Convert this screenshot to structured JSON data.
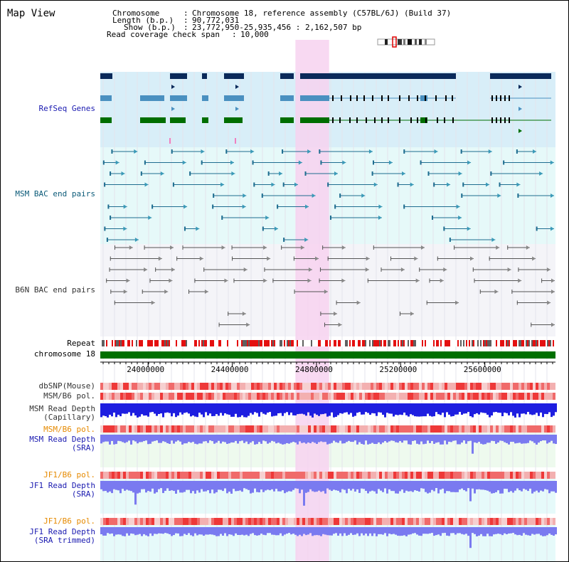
{
  "page": {
    "title": "Map View"
  },
  "header": {
    "chromosome_key": "Chromosome",
    "chromosome_value": "Chromosome 18, reference assembly (C57BL/6J) (Build 37)",
    "length_key": "Length (b.p.)",
    "length_value": "90,772,031",
    "show_key": "Show (b.p.)",
    "show_value": "23,772,950-25,935,456 : 2,162,507 bp",
    "coverage_key": "Read coverage check span",
    "coverage_value": "10,000",
    "sep": ":"
  },
  "tracks": {
    "refseq": "RefSeq Genes",
    "msm_bac": "MSM BAC end pairs",
    "b6n_bac": "B6N BAC end pairs",
    "repeat": "Repeat",
    "chromosome": "chromosome 18",
    "dbsnp": "dbSNP(Mouse)",
    "msm_b6_pol_1": "MSM/B6 pol.",
    "msm_read_depth_cap_1": "MSM Read Depth",
    "msm_read_depth_cap_2": "(Capillary)",
    "msm_b6_pol_2": "MSM/B6 pol.",
    "msm_read_depth_sra_1": "MSM Read Depth",
    "msm_read_depth_sra_2": "(SRA)",
    "jf1_b6_pol_1": "JF1/B6 pol.",
    "jf1_read_depth_sra_1": "JF1 Read Depth",
    "jf1_read_depth_sra_2": "(SRA)",
    "jf1_b6_pol_2": "JF1/B6 pol.",
    "jf1_read_depth_trim_1": "JF1 Read Depth",
    "jf1_read_depth_trim_2": "(SRA trimmed)"
  },
  "axis": {
    "tick_labels": [
      "24000000",
      "24400000",
      "24800000",
      "25200000",
      "25600000"
    ],
    "tick_values": [
      24000000,
      24400000,
      24800000,
      25200000,
      25600000
    ],
    "range_start": 23772950,
    "range_end": 25935456
  },
  "highlight": {
    "start": 24700000,
    "end": 24860000,
    "color": "#f7d2f0"
  },
  "colors": {
    "refseq_bg": "#d8eef8",
    "msm_bg": "#e6f9f9",
    "b6n_bg": "#f4f4f8",
    "chromosome_bar": "#007000",
    "dark_navy": "#0a2a5a",
    "light_blue": "#4a90c0",
    "gene_green": "#006e00",
    "depth_blue": "#1e1ee0",
    "depth_light_blue": "#7a7af0",
    "pol_red": "#f25050"
  }
}
